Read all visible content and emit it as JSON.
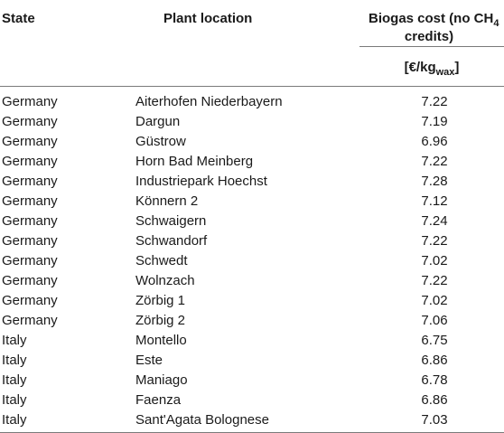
{
  "table": {
    "headers": {
      "state": "State",
      "location": "Plant location",
      "cost_line1_pre": "Biogas cost (no CH",
      "cost_line1_sub": "4",
      "cost_line2": "credits)",
      "unit_pre": "[€/kg",
      "unit_sub": "wax",
      "unit_post": "]"
    },
    "rows": [
      {
        "state": "Germany",
        "location": "Aiterhofen Niederbayern",
        "cost": "7.22"
      },
      {
        "state": "Germany",
        "location": "Dargun",
        "cost": "7.19"
      },
      {
        "state": "Germany",
        "location": "Güstrow",
        "cost": "6.96"
      },
      {
        "state": "Germany",
        "location": "Horn Bad Meinberg",
        "cost": "7.22"
      },
      {
        "state": "Germany",
        "location": "Industriepark Hoechst",
        "cost": "7.28"
      },
      {
        "state": "Germany",
        "location": "Könnern 2",
        "cost": "7.12"
      },
      {
        "state": "Germany",
        "location": "Schwaigern",
        "cost": "7.24"
      },
      {
        "state": "Germany",
        "location": "Schwandorf",
        "cost": "7.22"
      },
      {
        "state": "Germany",
        "location": "Schwedt",
        "cost": "7.02"
      },
      {
        "state": "Germany",
        "location": "Wolnzach",
        "cost": "7.22"
      },
      {
        "state": "Germany",
        "location": "Zörbig 1",
        "cost": "7.02"
      },
      {
        "state": "Germany",
        "location": "Zörbig 2",
        "cost": "7.06"
      },
      {
        "state": "Italy",
        "location": "Montello",
        "cost": "6.75"
      },
      {
        "state": "Italy",
        "location": "Este",
        "cost": "6.86"
      },
      {
        "state": "Italy",
        "location": "Maniago",
        "cost": "6.78"
      },
      {
        "state": "Italy",
        "location": "Faenza",
        "cost": "6.86"
      },
      {
        "state": "Italy",
        "location": "Sant'Agata Bolognese",
        "cost": "7.03"
      }
    ]
  }
}
